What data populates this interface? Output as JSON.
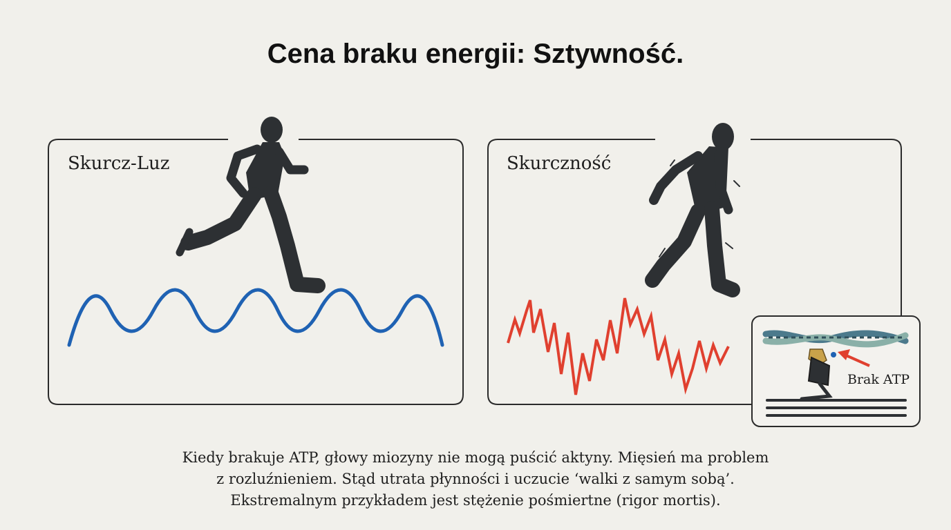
{
  "title": "Cena braku energii: Sztywność.",
  "panels": {
    "left": {
      "label": "Skurcz-Luz"
    },
    "right": {
      "label": "Skurczność"
    }
  },
  "inset": {
    "label": "Brak ATP"
  },
  "caption": {
    "lines": [
      "Kiedy brakuje ATP, głowy miozyny nie mogą puścić aktyny. Mięsień ma problem",
      "z rozluźnieniem. Stąd utrata płynności i uczucie ‘walki z samym sobą’.",
      "Ekstremalnym przykładem jest stężenie pośmiertne (rigor mortis)."
    ]
  },
  "colors": {
    "background": "#f1f0eb",
    "smooth_wave": "#1f62b3",
    "jagged_line": "#e0402f",
    "silhouette": "#2d3033",
    "arrow": "#e0402f"
  },
  "icons": [
    "running-figure-icon",
    "stiff-walking-figure-icon",
    "actin-filament-icon",
    "myosin-head-icon"
  ]
}
